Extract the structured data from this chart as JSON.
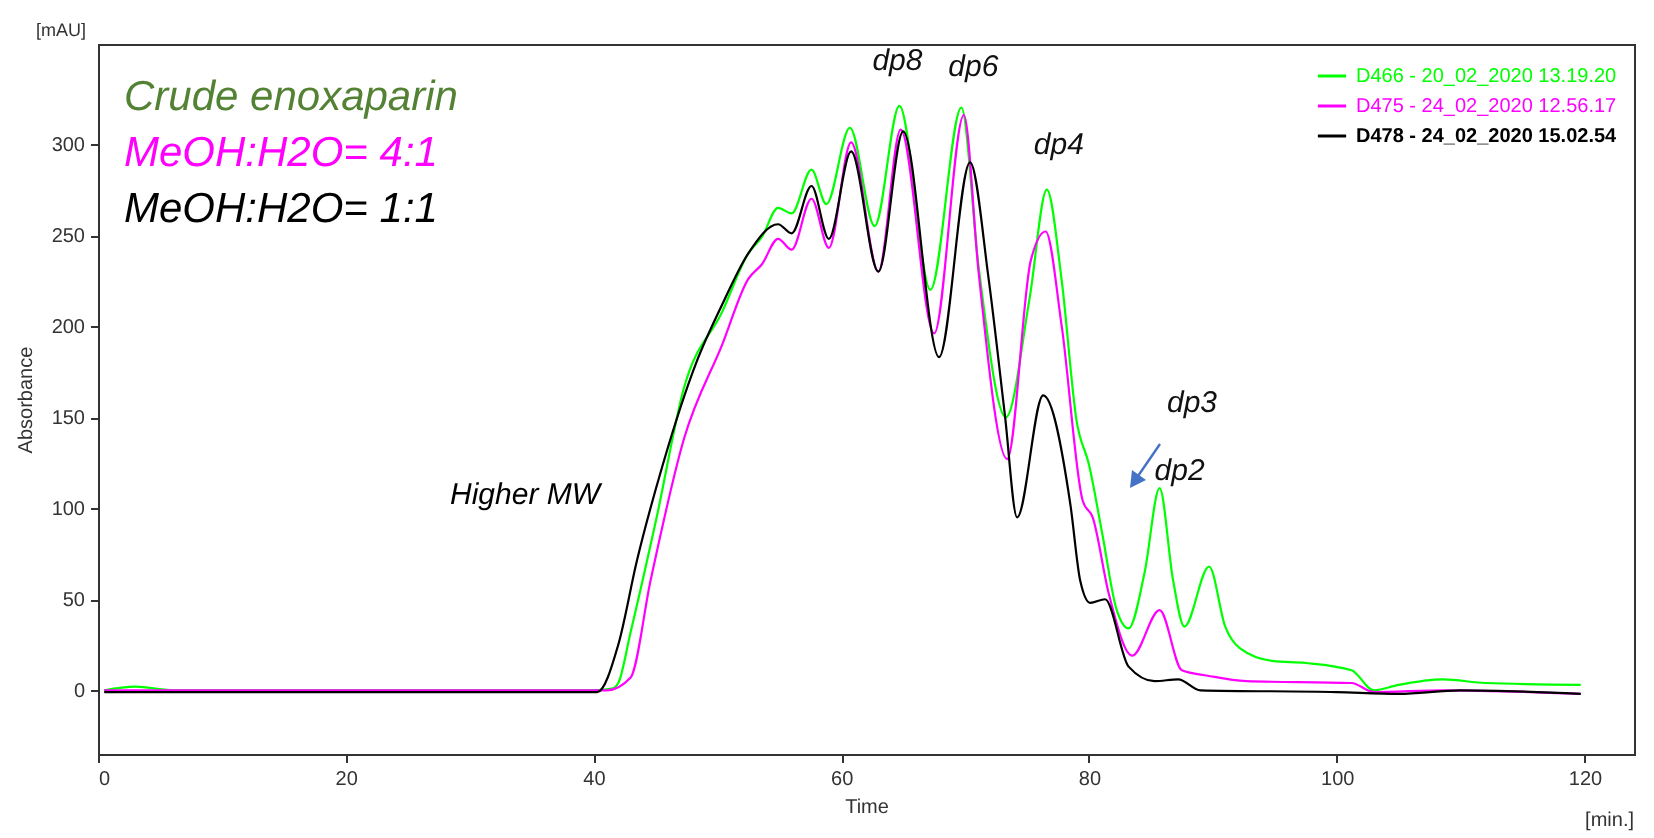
{
  "chart_data": {
    "type": "line",
    "xlabel": "Time",
    "ylabel": "Absorbance",
    "xlim": [
      0,
      124
    ],
    "xticks": [
      0,
      20,
      40,
      60,
      80,
      100,
      120
    ],
    "ylim": [
      -35,
      355
    ],
    "yticks": [
      0,
      50,
      100,
      150,
      200,
      250,
      300
    ],
    "grid": false,
    "legend": "top right",
    "marker": "none",
    "line_style": "solid",
    "annotations": [
      "Crude enoxaparin",
      "MeOH:H2O= 4:1",
      "MeOH:H2O= 1:1",
      "Higher MW",
      "[mAU]",
      "[min.]",
      "dp3",
      {
        "text": "dp8",
        "x": 64.7,
        "y": 321
      },
      {
        "text": "dp6",
        "x": 69.7,
        "y": 320
      },
      {
        "text": "dp4",
        "x": 76.6,
        "y": 275
      },
      {
        "text": "dp2",
        "x": 85.7,
        "y": 111
      }
    ],
    "series": [
      {
        "name": "D466 - 20_02_2020 13.19.20",
        "color": "#00ff00",
        "x": [
          0.5,
          3,
          6,
          20,
          40,
          41.5,
          42,
          43,
          45.1,
          47.3,
          50.4,
          52.5,
          53.6,
          54.9,
          56,
          57.6,
          58.8,
          60.7,
          62.7,
          64.7,
          67.2,
          69.7,
          71.1,
          73.3,
          75.2,
          76.6,
          77.8,
          79,
          80,
          81.1,
          82.2,
          83.2,
          84.5,
          85.7,
          86.8,
          87.7,
          89.7,
          91,
          92.2,
          94.9,
          97.5,
          101.2,
          103,
          105,
          108.6,
          112,
          119.7
        ],
        "values": [
          0,
          2,
          0,
          0,
          0,
          1,
          4,
          32,
          95,
          166,
          208,
          240,
          249,
          265,
          262,
          286,
          267,
          309,
          255,
          321,
          220,
          320,
          232,
          150,
          215,
          275,
          225,
          148,
          124,
          85,
          45,
          34,
          65,
          111,
          60,
          35,
          68,
          35,
          23,
          16,
          15,
          11,
          0,
          3,
          6,
          4,
          3
        ]
      },
      {
        "name": "D475 - 24_02_2020 12.56.17",
        "color": "#ff00ff",
        "x": [
          0.5,
          20,
          41.1,
          43,
          44.6,
          47.3,
          50.4,
          52.5,
          53.6,
          54.9,
          56,
          57.6,
          59,
          60.8,
          63,
          64.8,
          67.5,
          69.9,
          71.1,
          73.4,
          75.3,
          76.5,
          77.8,
          79.5,
          80.3,
          81.6,
          83.5,
          85.7,
          87.5,
          89.6,
          92.7,
          101.2,
          103,
          108.6,
          119.7
        ],
        "values": [
          0,
          0,
          0,
          7,
          60,
          138,
          190,
          226,
          234,
          248,
          242,
          270,
          243,
          301,
          230,
          308,
          196,
          316,
          229,
          127,
          236,
          252,
          200,
          104,
          95,
          53,
          19,
          44,
          11,
          8,
          5,
          4,
          -1,
          0,
          -2
        ]
      },
      {
        "name": "D478 - 24_02_2020 15.02.54",
        "color": "#000000",
        "x": [
          0.5,
          20,
          40.3,
          42,
          43.5,
          45.6,
          48.3,
          50.4,
          52.5,
          54.9,
          56,
          57.6,
          59,
          60.8,
          63,
          65,
          67.9,
          70.4,
          71.9,
          73.2,
          74.2,
          76.3,
          78.5,
          79.3,
          80.1,
          81.3,
          83.2,
          85.3,
          87.2,
          89,
          100,
          105,
          110,
          119.7
        ],
        "values": [
          -1,
          -1,
          -1,
          25,
          71,
          124,
          180,
          212,
          240,
          256,
          251,
          277,
          248,
          296,
          230,
          307,
          183,
          290,
          226,
          152,
          95,
          162,
          102,
          60,
          48,
          50,
          13,
          5,
          6,
          0,
          -1,
          -2,
          0,
          -2
        ]
      }
    ]
  }
}
